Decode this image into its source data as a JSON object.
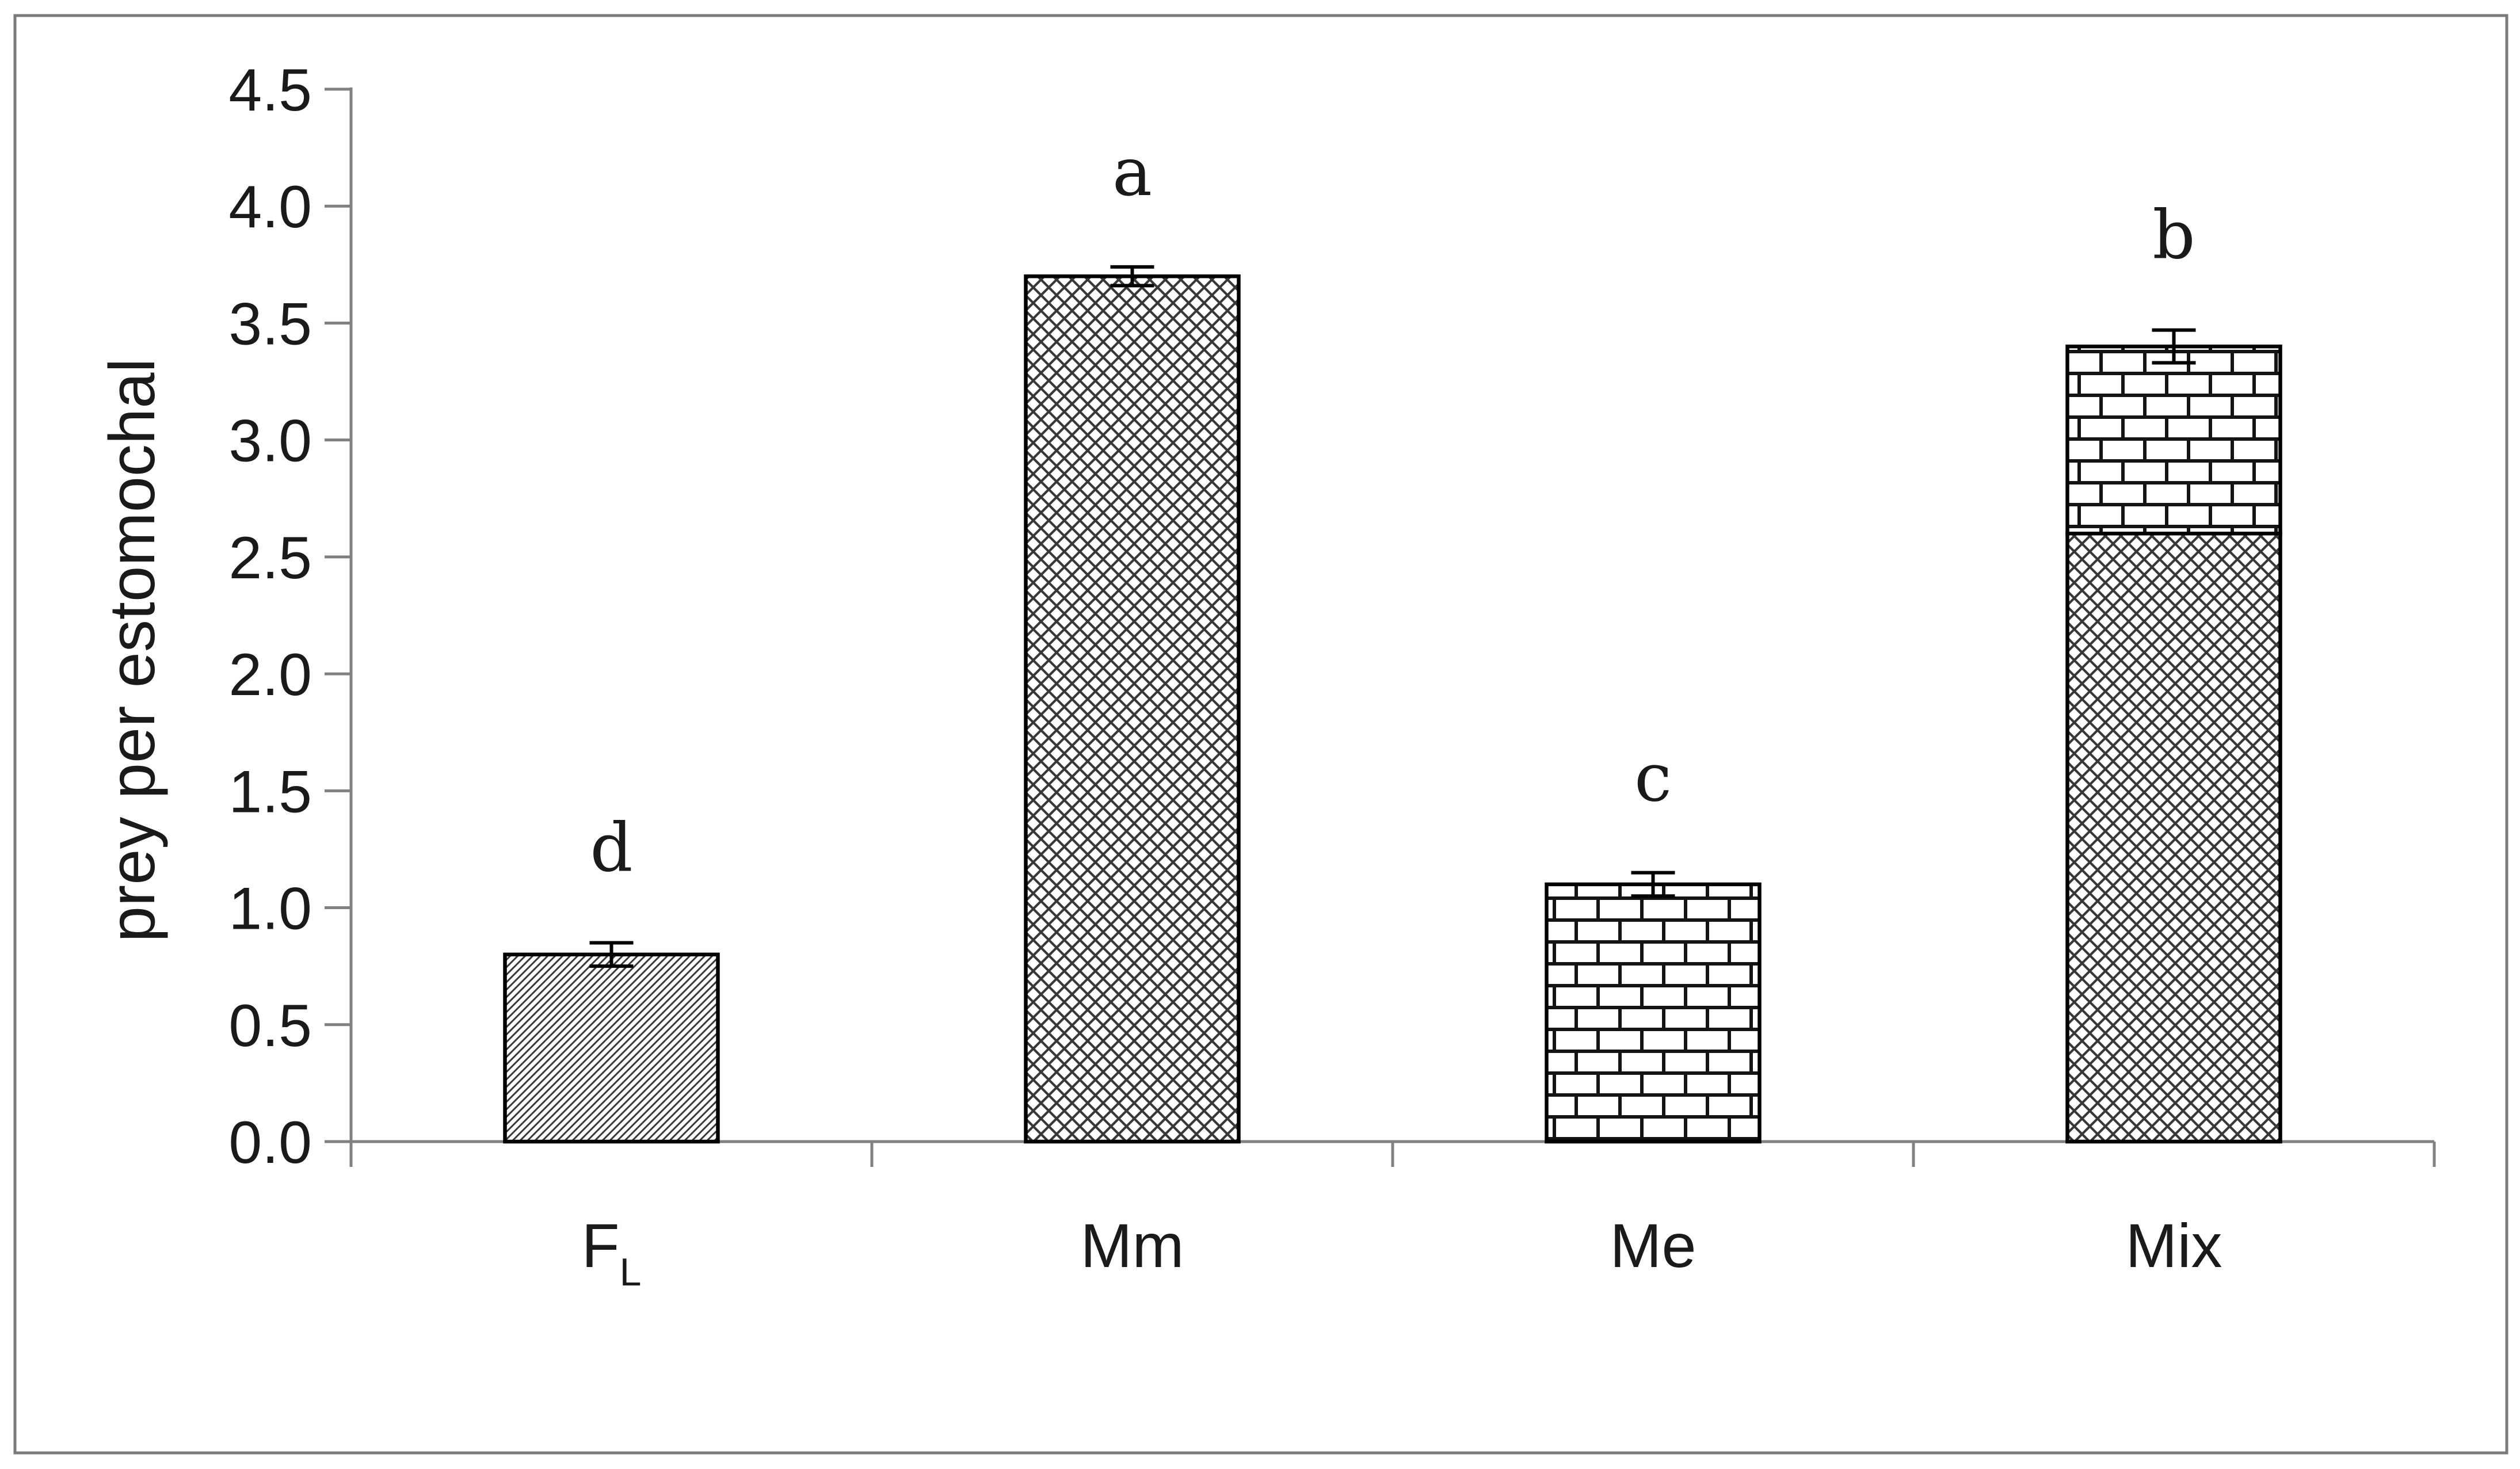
{
  "figure": {
    "background": "#ffffff",
    "border_color": "#7b7b7b",
    "ink_color": "#1a1a1a",
    "axis_color": "#808080",
    "bar_outline_color": "#000000",
    "pattern_colors": {
      "diagonal": "#3a3a3a",
      "crosshatch": "#383838",
      "brick": "#141414"
    }
  },
  "chart_data": {
    "type": "bar",
    "stacked": true,
    "title": "",
    "xlabel": "",
    "ylabel": "prey per estomochal",
    "ylim": [
      0,
      4.5
    ],
    "ytick_step": 0.5,
    "ytick_labels": [
      "0.0",
      "0.5",
      "1.0",
      "1.5",
      "2.0",
      "2.5",
      "3.0",
      "3.5",
      "4.0",
      "4.5"
    ],
    "grid": false,
    "legend": null,
    "categories": [
      {
        "text": "F",
        "sub": "L"
      },
      {
        "text": "Mm",
        "sub": ""
      },
      {
        "text": "Me",
        "sub": ""
      },
      {
        "text": "Mix",
        "sub": ""
      }
    ],
    "bars": [
      {
        "category": "FL",
        "total": 0.8,
        "error": 0.05,
        "letter": "d",
        "segments": [
          {
            "value": 0.8,
            "pattern": "diagonal"
          }
        ]
      },
      {
        "category": "Mm",
        "total": 3.7,
        "error": 0.04,
        "letter": "a",
        "segments": [
          {
            "value": 3.7,
            "pattern": "crosshatch"
          }
        ]
      },
      {
        "category": "Me",
        "total": 1.1,
        "error": 0.05,
        "letter": "c",
        "segments": [
          {
            "value": 1.1,
            "pattern": "brick"
          }
        ]
      },
      {
        "category": "Mix",
        "total": 3.4,
        "error": 0.07,
        "letter": "b",
        "segments": [
          {
            "value": 2.6,
            "pattern": "crosshatch"
          },
          {
            "value": 0.8,
            "pattern": "brick"
          }
        ]
      }
    ]
  }
}
